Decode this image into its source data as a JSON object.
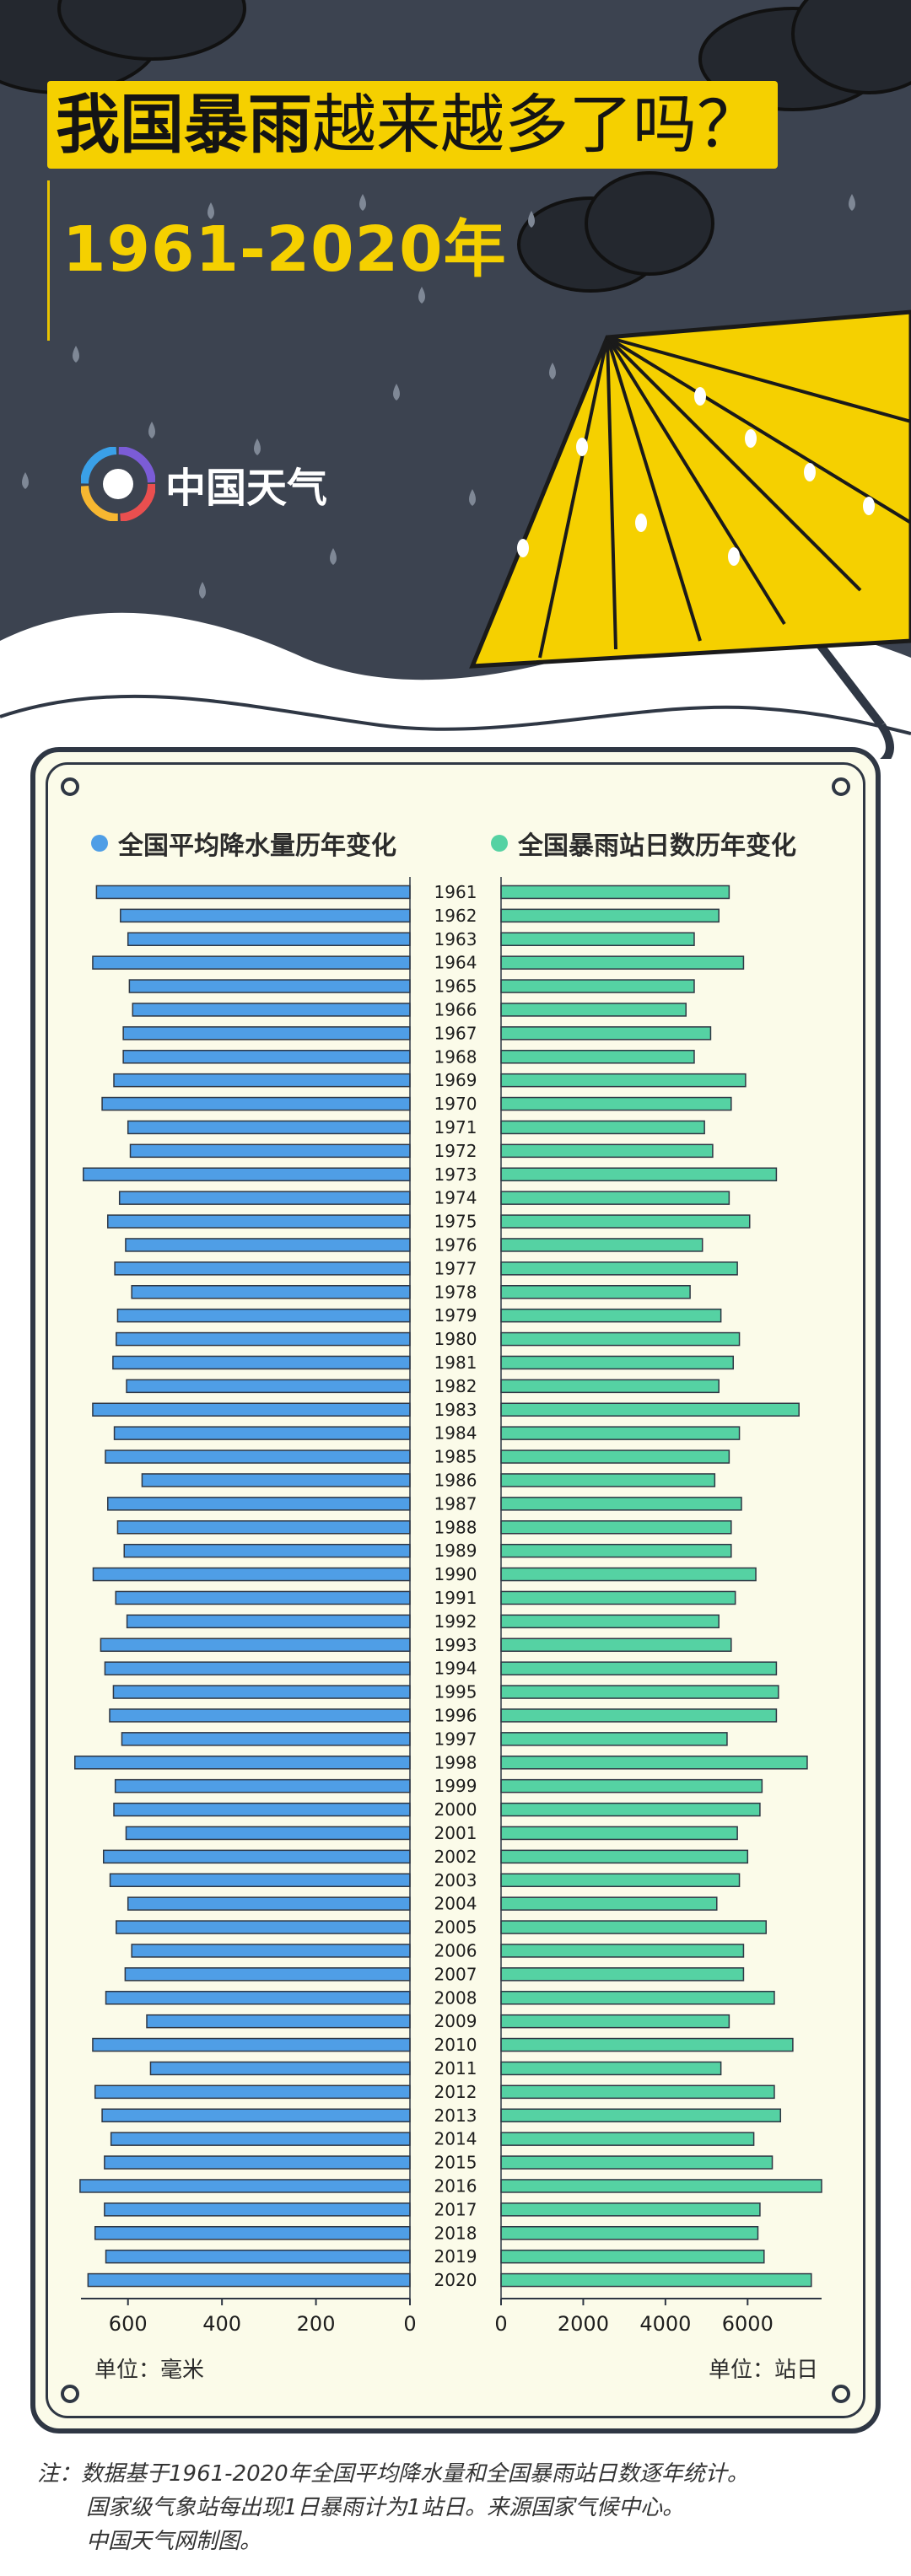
{
  "header": {
    "title_bold": "我国暴雨",
    "title_rest": "越来越多了吗？",
    "years": "1961-2020年",
    "brand": "中国天气"
  },
  "legend": {
    "left": "全国平均降水量历年变化",
    "right": "全国暴雨站日数历年变化",
    "left_color": "#4f9ee6",
    "right_color": "#55d2a3"
  },
  "units": {
    "left": "单位：毫米",
    "right": "单位：站日"
  },
  "note": {
    "line1": "注：数据基于1961-2020年全国平均降水量和全国暴雨站日数逐年统计。",
    "line2": "国家级气象站每出现1日暴雨计为1站日。来源国家气候中心。",
    "line3": "中国天气网制图。"
  },
  "chart_data": {
    "type": "bar",
    "orientation": "horizontal-butterfly",
    "categories": [
      "1961",
      "1962",
      "1963",
      "1964",
      "1965",
      "1966",
      "1967",
      "1968",
      "1969",
      "1970",
      "1971",
      "1972",
      "1973",
      "1974",
      "1975",
      "1976",
      "1977",
      "1978",
      "1979",
      "1980",
      "1981",
      "1982",
      "1983",
      "1984",
      "1985",
      "1986",
      "1987",
      "1988",
      "1989",
      "1990",
      "1991",
      "1992",
      "1993",
      "1994",
      "1995",
      "1996",
      "1997",
      "1998",
      "1999",
      "2000",
      "2001",
      "2002",
      "2003",
      "2004",
      "2005",
      "2006",
      "2007",
      "2008",
      "2009",
      "2010",
      "2011",
      "2012",
      "2013",
      "2014",
      "2015",
      "2016",
      "2017",
      "2018",
      "2019",
      "2020"
    ],
    "series": [
      {
        "name": "全国平均降水量历年变化",
        "values": [
          667,
          616,
          600,
          675,
          597,
          590,
          610,
          610,
          630,
          655,
          600,
          595,
          695,
          618,
          643,
          605,
          628,
          592,
          622,
          625,
          632,
          603,
          675,
          629,
          648,
          570,
          643,
          622,
          608,
          674,
          626,
          602,
          658,
          649,
          631,
          639,
          613,
          713,
          627,
          630,
          604,
          652,
          638,
          600,
          625,
          592,
          606,
          647,
          560,
          675,
          552,
          670,
          655,
          636,
          650,
          702,
          650,
          670,
          647,
          685
        ],
        "axis": {
          "min": 0,
          "max": 700,
          "ticks": [
            0,
            200,
            400,
            600
          ],
          "reversed": true
        }
      },
      {
        "name": "全国暴雨站日数历年变化",
        "values": [
          5550,
          5300,
          4700,
          5900,
          4700,
          4500,
          5100,
          4700,
          5950,
          5600,
          4950,
          5150,
          6700,
          5550,
          6050,
          4900,
          5750,
          4600,
          5350,
          5800,
          5650,
          5300,
          7250,
          5800,
          5550,
          5200,
          5850,
          5600,
          5600,
          6200,
          5700,
          5300,
          5600,
          6700,
          6750,
          6700,
          5500,
          7450,
          6350,
          6300,
          5750,
          6000,
          5800,
          5250,
          6450,
          5900,
          5900,
          6650,
          5550,
          7100,
          5350,
          6650,
          6800,
          6150,
          6600,
          7800,
          6300,
          6250,
          6400,
          7550
        ],
        "axis": {
          "min": 0,
          "max": 7800,
          "ticks": [
            0,
            2000,
            4000,
            6000
          ]
        }
      }
    ]
  }
}
